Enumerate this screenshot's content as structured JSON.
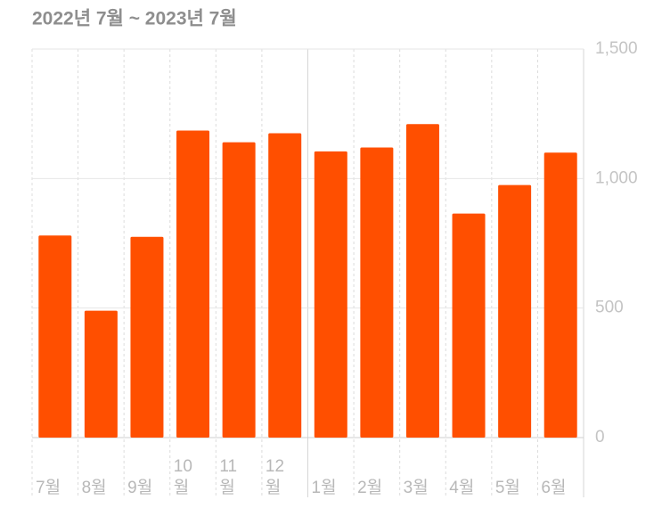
{
  "chart_data": {
    "type": "bar",
    "title": "2022년 7월 ~ 2023년 7월",
    "categories": [
      "7월",
      "8월",
      "9월",
      "10월",
      "11월",
      "12월",
      "1월",
      "2월",
      "3월",
      "4월",
      "5월",
      "6월"
    ],
    "values": [
      780,
      490,
      775,
      1185,
      1140,
      1175,
      1105,
      1120,
      1210,
      865,
      975,
      1100
    ],
    "color": "#ff4f00",
    "ylim": [
      0,
      1500
    ],
    "yticks": [
      0,
      500,
      {
        "value": 1000,
        "label": "1,000"
      },
      {
        "value": 1500,
        "label": "1,500"
      }
    ],
    "grid": true
  }
}
